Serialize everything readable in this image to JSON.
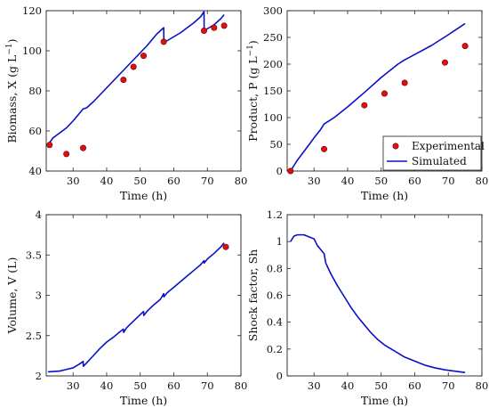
{
  "legend": {
    "experimental": "Experimental",
    "simulated": "Simulated"
  },
  "chart_data": [
    {
      "id": "biomass",
      "type": "line",
      "xlabel": "Time (h)",
      "ylabel_main": "Biomass, X (g L",
      "ylabel_sup": "−1",
      "ylabel_close": ")",
      "xlim": [
        22,
        80
      ],
      "ylim": [
        40,
        120
      ],
      "xticks": [
        30,
        40,
        50,
        60,
        70,
        80
      ],
      "yticks": [
        40,
        60,
        80,
        100,
        120
      ],
      "grid": false,
      "series": [
        {
          "name": "Simulated",
          "type": "line",
          "x": [
            22.5,
            24,
            26,
            28,
            30,
            32,
            33,
            34,
            36,
            38,
            40,
            42,
            44,
            46,
            48,
            50,
            52,
            54,
            55,
            56,
            57,
            57.05,
            58,
            60,
            62,
            64,
            66,
            68,
            69,
            69.05,
            70,
            72,
            74,
            75
          ],
          "y": [
            53,
            56.5,
            59,
            61.5,
            65,
            69,
            71,
            71.5,
            74.5,
            78,
            81.5,
            85,
            88.5,
            92,
            95.5,
            99,
            102.5,
            106.5,
            108.5,
            110,
            111.5,
            104,
            105,
            107,
            109,
            111.5,
            114,
            117,
            119.5,
            110,
            111,
            113,
            116,
            118
          ]
        },
        {
          "name": "Experimental",
          "type": "scatter",
          "x": [
            23,
            28,
            33,
            45,
            48,
            51,
            57,
            69,
            72,
            75
          ],
          "y": [
            53,
            48.5,
            51.5,
            85.5,
            92,
            97.5,
            104.5,
            110,
            111.5,
            112.5
          ]
        }
      ]
    },
    {
      "id": "product",
      "type": "line",
      "xlabel": "Time (h)",
      "ylabel_main": "Product, P (g L",
      "ylabel_sup": "−1",
      "ylabel_close": ")",
      "xlim": [
        22,
        80
      ],
      "ylim": [
        0,
        300
      ],
      "xticks": [
        30,
        40,
        50,
        60,
        70,
        80
      ],
      "yticks": [
        0,
        50,
        100,
        150,
        200,
        250,
        300
      ],
      "grid": false,
      "legend_position": "bottom-right",
      "series": [
        {
          "name": "Simulated",
          "type": "line",
          "x": [
            23,
            25,
            28,
            30,
            32,
            33,
            34,
            36,
            38,
            40,
            45,
            50,
            55,
            57,
            60,
            65,
            70,
            75
          ],
          "y": [
            0,
            20,
            45,
            62,
            78,
            88,
            92,
            100,
            110,
            120,
            147,
            175,
            200,
            208,
            218,
            235,
            255,
            276
          ]
        },
        {
          "name": "Experimental",
          "type": "scatter",
          "x": [
            23,
            33,
            45,
            51,
            57,
            69,
            75
          ],
          "y": [
            0,
            41,
            123,
            145,
            165,
            203,
            234
          ]
        }
      ]
    },
    {
      "id": "volume",
      "type": "line",
      "xlabel": "Time (h)",
      "ylabel_main": "Volume, V (L)",
      "ylabel_sup": "",
      "ylabel_close": "",
      "xlim": [
        22,
        80
      ],
      "ylim": [
        2,
        4
      ],
      "xticks": [
        30,
        40,
        50,
        60,
        70,
        80
      ],
      "yticks": [
        2,
        2.5,
        3,
        3.5,
        4
      ],
      "grid": false,
      "series": [
        {
          "name": "Simulated",
          "type": "line",
          "x": [
            22.5,
            26,
            28,
            30,
            32,
            33,
            33.05,
            34,
            36,
            38,
            40,
            42,
            44,
            45,
            45.05,
            46,
            48,
            50,
            51,
            51.05,
            52,
            54,
            56,
            57,
            57.05,
            58,
            60,
            62,
            64,
            66,
            68,
            69,
            69.05,
            70,
            72,
            74,
            75
          ],
          "y": [
            2.05,
            2.06,
            2.08,
            2.1,
            2.15,
            2.18,
            2.12,
            2.16,
            2.25,
            2.34,
            2.42,
            2.48,
            2.55,
            2.58,
            2.54,
            2.6,
            2.68,
            2.76,
            2.8,
            2.75,
            2.8,
            2.88,
            2.95,
            3.02,
            2.98,
            3.03,
            3.1,
            3.17,
            3.24,
            3.31,
            3.38,
            3.43,
            3.4,
            3.45,
            3.52,
            3.6,
            3.65
          ]
        },
        {
          "name": "Experimental",
          "type": "scatter",
          "x": [
            75.5
          ],
          "y": [
            3.6
          ]
        }
      ]
    },
    {
      "id": "shock",
      "type": "line",
      "xlabel": "Time (h)",
      "ylabel_main": "Shock factor, Sh",
      "ylabel_sup": "",
      "ylabel_close": "",
      "xlim": [
        22,
        80
      ],
      "ylim": [
        0,
        1.2
      ],
      "xticks": [
        30,
        40,
        50,
        60,
        70,
        80
      ],
      "yticks": [
        0,
        0.2,
        0.4,
        0.6,
        0.8,
        1,
        1.2
      ],
      "grid": false,
      "series": [
        {
          "name": "Simulated",
          "type": "line",
          "x": [
            23,
            24,
            25,
            26,
            27,
            28,
            29,
            30,
            31,
            32,
            33,
            33.5,
            35,
            37,
            39,
            41,
            43,
            45,
            47,
            49,
            51,
            53,
            55,
            57,
            60,
            63,
            66,
            69,
            72,
            75
          ],
          "y": [
            1.0,
            1.04,
            1.05,
            1.05,
            1.05,
            1.04,
            1.03,
            1.02,
            0.97,
            0.94,
            0.91,
            0.84,
            0.76,
            0.67,
            0.59,
            0.51,
            0.44,
            0.38,
            0.32,
            0.27,
            0.23,
            0.2,
            0.17,
            0.14,
            0.11,
            0.08,
            0.06,
            0.045,
            0.035,
            0.025
          ]
        }
      ]
    }
  ]
}
